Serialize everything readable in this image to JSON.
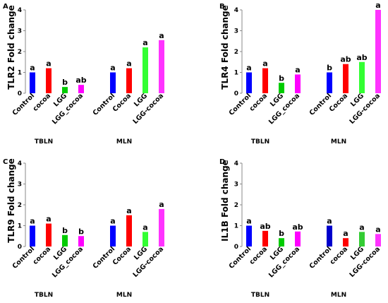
{
  "chart_data": [
    {
      "type": "bar",
      "panel_label": "A",
      "ylabel": "TLR2 Fold change",
      "ylim": [
        0,
        4
      ],
      "yticks": [
        0,
        1,
        2,
        3,
        4
      ],
      "groups": [
        {
          "name": "TBLN",
          "categories": [
            "Control",
            "cocoa",
            "LGG",
            "LGG_cocoa"
          ],
          "values": [
            1.0,
            1.2,
            0.3,
            0.4
          ],
          "colors": [
            "#0000ff",
            "#ff0000",
            "#00cc00",
            "#ff00ff"
          ],
          "significance": [
            "a",
            "a",
            "b",
            "ab"
          ]
        },
        {
          "name": "MLN",
          "categories": [
            "Control",
            "Cocoa",
            "LGG",
            "LGG-cocoa"
          ],
          "values": [
            1.0,
            1.2,
            2.2,
            2.55
          ],
          "colors": [
            "#0000ff",
            "#ff0000",
            "#33ff33",
            "#ff33ff"
          ],
          "significance": [
            "a",
            "a",
            "a",
            "a"
          ]
        }
      ]
    },
    {
      "type": "bar",
      "panel_label": "B",
      "ylabel": "TLR4 Fold change",
      "ylim": [
        0,
        4
      ],
      "yticks": [
        0,
        1,
        2,
        3,
        4
      ],
      "groups": [
        {
          "name": "TBLN",
          "categories": [
            "Control",
            "cocoa",
            "LGG",
            "LGG_cocoa"
          ],
          "values": [
            1.0,
            1.2,
            0.5,
            0.9
          ],
          "colors": [
            "#0000ff",
            "#ff0000",
            "#00cc00",
            "#ff00ff"
          ],
          "significance": [
            "a",
            "a",
            "b",
            "a"
          ]
        },
        {
          "name": "MLN",
          "categories": [
            "Control",
            "Cocoa",
            "LGG",
            "LGG-cocoa"
          ],
          "values": [
            1.0,
            1.4,
            1.5,
            4.0
          ],
          "colors": [
            "#0000ff",
            "#ff0000",
            "#33ff33",
            "#ff33ff"
          ],
          "significance": [
            "b",
            "ab",
            "ab",
            "a"
          ]
        }
      ]
    },
    {
      "type": "bar",
      "panel_label": "C",
      "ylabel": "TLR9 Fold change",
      "ylim": [
        0,
        4
      ],
      "yticks": [
        0,
        1,
        2,
        3,
        4
      ],
      "groups": [
        {
          "name": "TBLN",
          "categories": [
            "Control",
            "cocoa",
            "LGG",
            "LGG_cocoa"
          ],
          "values": [
            1.0,
            1.1,
            0.55,
            0.5
          ],
          "colors": [
            "#0000ff",
            "#ff0000",
            "#00cc00",
            "#ff00ff"
          ],
          "significance": [
            "a",
            "a",
            "b",
            "b"
          ]
        },
        {
          "name": "MLN",
          "categories": [
            "Control",
            "Cocoa",
            "LGG",
            "LGG-cocoa"
          ],
          "values": [
            1.0,
            1.5,
            0.7,
            1.8
          ],
          "colors": [
            "#0000ff",
            "#ff0000",
            "#33ff33",
            "#ff33ff"
          ],
          "significance": [
            "a",
            "a",
            "a",
            "a"
          ]
        }
      ]
    },
    {
      "type": "bar",
      "panel_label": "D",
      "ylabel": "IL1B Fold change",
      "ylim": [
        0,
        4
      ],
      "yticks": [
        0,
        1,
        2,
        3,
        4
      ],
      "groups": [
        {
          "name": "TBLN",
          "categories": [
            "Control",
            "cocoa",
            "LGG",
            "LGG_cocoa"
          ],
          "values": [
            1.0,
            0.75,
            0.4,
            0.72
          ],
          "colors": [
            "#0000ff",
            "#ff0000",
            "#00cc00",
            "#ff00ff"
          ],
          "significance": [
            "a",
            "ab",
            "b",
            "ab"
          ]
        },
        {
          "name": "MLN",
          "categories": [
            "Control",
            "cocoa",
            "LGG",
            "LGG-cocoa"
          ],
          "values": [
            1.0,
            0.4,
            0.7,
            0.6
          ],
          "colors": [
            "#0000cc",
            "#ff0000",
            "#33cc33",
            "#ff33ff"
          ],
          "significance": [
            "a",
            "a",
            "a",
            "a"
          ]
        }
      ]
    }
  ]
}
